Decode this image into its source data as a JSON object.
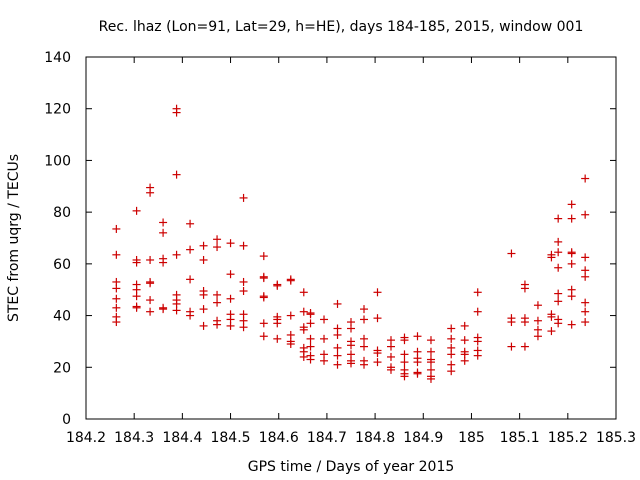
{
  "chart_data": {
    "type": "scatter",
    "title": "Rec. lhaz (Lon=91, Lat=29, h=HE), days 184-185, 2015, window 001",
    "xlabel": "GPS time / Days of year 2015",
    "ylabel": "STEC from uqrg / TECUs",
    "xlim": [
      184.2,
      185.3
    ],
    "ylim": [
      0,
      140
    ],
    "xticks": [
      "184.2",
      "184.3",
      "184.4",
      "184.5",
      "184.6",
      "184.7",
      "184.8",
      "184.9",
      "185",
      "185.1",
      "185.2",
      "185.3"
    ],
    "yticks": [
      "0",
      "20",
      "40",
      "60",
      "80",
      "100",
      "120",
      "140"
    ],
    "grid": false,
    "marker": "+",
    "color": "#cc0000",
    "points": [
      [
        184.263,
        73.5
      ],
      [
        184.263,
        63.5
      ],
      [
        184.263,
        53.0
      ],
      [
        184.263,
        50.5
      ],
      [
        184.263,
        46.5
      ],
      [
        184.263,
        43.0
      ],
      [
        184.263,
        39.5
      ],
      [
        184.263,
        37.5
      ],
      [
        184.305,
        80.5
      ],
      [
        184.305,
        61.5
      ],
      [
        184.305,
        60.5
      ],
      [
        184.305,
        52.0
      ],
      [
        184.305,
        50.0
      ],
      [
        184.305,
        47.5
      ],
      [
        184.305,
        43.5
      ],
      [
        184.305,
        43.0
      ],
      [
        184.333,
        89.5
      ],
      [
        184.333,
        87.5
      ],
      [
        184.333,
        61.5
      ],
      [
        184.333,
        53.0
      ],
      [
        184.333,
        52.5
      ],
      [
        184.333,
        46.0
      ],
      [
        184.333,
        41.5
      ],
      [
        184.36,
        76.0
      ],
      [
        184.36,
        72.0
      ],
      [
        184.36,
        62.0
      ],
      [
        184.36,
        60.5
      ],
      [
        184.36,
        43.0
      ],
      [
        184.36,
        42.5
      ],
      [
        184.388,
        120.0
      ],
      [
        184.388,
        118.5
      ],
      [
        184.388,
        94.5
      ],
      [
        184.388,
        63.5
      ],
      [
        184.388,
        48.0
      ],
      [
        184.388,
        46.0
      ],
      [
        184.388,
        44.5
      ],
      [
        184.388,
        42.0
      ],
      [
        184.416,
        75.5
      ],
      [
        184.416,
        65.5
      ],
      [
        184.416,
        54.0
      ],
      [
        184.416,
        41.5
      ],
      [
        184.416,
        40.0
      ],
      [
        184.444,
        67.0
      ],
      [
        184.444,
        61.5
      ],
      [
        184.444,
        49.5
      ],
      [
        184.444,
        48.0
      ],
      [
        184.444,
        42.5
      ],
      [
        184.444,
        36.0
      ],
      [
        184.472,
        69.5
      ],
      [
        184.472,
        66.5
      ],
      [
        184.472,
        48.0
      ],
      [
        184.472,
        45.0
      ],
      [
        184.472,
        38.0
      ],
      [
        184.472,
        36.5
      ],
      [
        184.5,
        68.0
      ],
      [
        184.5,
        56.0
      ],
      [
        184.5,
        46.5
      ],
      [
        184.5,
        40.5
      ],
      [
        184.5,
        38.5
      ],
      [
        184.5,
        36.0
      ],
      [
        184.527,
        85.5
      ],
      [
        184.527,
        67.0
      ],
      [
        184.527,
        53.0
      ],
      [
        184.527,
        49.5
      ],
      [
        184.527,
        40.5
      ],
      [
        184.527,
        38.0
      ],
      [
        184.527,
        35.5
      ],
      [
        184.569,
        63.0
      ],
      [
        184.569,
        55.0
      ],
      [
        184.569,
        54.5
      ],
      [
        184.569,
        47.5
      ],
      [
        184.569,
        47.0
      ],
      [
        184.569,
        37.0
      ],
      [
        184.569,
        32.0
      ],
      [
        184.597,
        52.0
      ],
      [
        184.597,
        51.5
      ],
      [
        184.597,
        39.5
      ],
      [
        184.597,
        38.5
      ],
      [
        184.597,
        37.0
      ],
      [
        184.597,
        31.0
      ],
      [
        184.625,
        54.0
      ],
      [
        184.625,
        53.5
      ],
      [
        184.625,
        40.0
      ],
      [
        184.625,
        32.5
      ],
      [
        184.625,
        30.0
      ],
      [
        184.625,
        29.0
      ],
      [
        184.652,
        49.0
      ],
      [
        184.652,
        41.5
      ],
      [
        184.652,
        35.5
      ],
      [
        184.652,
        34.5
      ],
      [
        184.652,
        27.5
      ],
      [
        184.652,
        26.0
      ],
      [
        184.652,
        24.0
      ],
      [
        184.666,
        41.0
      ],
      [
        184.666,
        40.5
      ],
      [
        184.666,
        37.0
      ],
      [
        184.666,
        31.0
      ],
      [
        184.666,
        28.0
      ],
      [
        184.666,
        24.5
      ],
      [
        184.666,
        23.0
      ],
      [
        184.694,
        38.5
      ],
      [
        184.694,
        31.0
      ],
      [
        184.694,
        25.0
      ],
      [
        184.694,
        22.5
      ],
      [
        184.722,
        44.5
      ],
      [
        184.722,
        35.0
      ],
      [
        184.722,
        32.5
      ],
      [
        184.722,
        27.5
      ],
      [
        184.722,
        24.5
      ],
      [
        184.722,
        21.0
      ],
      [
        184.75,
        37.5
      ],
      [
        184.75,
        35.0
      ],
      [
        184.75,
        30.0
      ],
      [
        184.75,
        28.5
      ],
      [
        184.75,
        25.0
      ],
      [
        184.75,
        22.5
      ],
      [
        184.75,
        21.5
      ],
      [
        184.777,
        42.5
      ],
      [
        184.777,
        38.5
      ],
      [
        184.777,
        31.0
      ],
      [
        184.777,
        28.0
      ],
      [
        184.777,
        22.5
      ],
      [
        184.777,
        21.0
      ],
      [
        184.805,
        49.0
      ],
      [
        184.805,
        39.0
      ],
      [
        184.805,
        26.5
      ],
      [
        184.805,
        25.5
      ],
      [
        184.805,
        22.0
      ],
      [
        184.833,
        30.5
      ],
      [
        184.833,
        28.0
      ],
      [
        184.833,
        24.0
      ],
      [
        184.833,
        20.0
      ],
      [
        184.833,
        19.0
      ],
      [
        184.861,
        31.5
      ],
      [
        184.861,
        30.5
      ],
      [
        184.861,
        25.0
      ],
      [
        184.861,
        22.0
      ],
      [
        184.861,
        19.0
      ],
      [
        184.861,
        17.5
      ],
      [
        184.861,
        16.5
      ],
      [
        184.888,
        32.0
      ],
      [
        184.888,
        26.0
      ],
      [
        184.888,
        23.5
      ],
      [
        184.888,
        22.0
      ],
      [
        184.888,
        18.0
      ],
      [
        184.888,
        17.5
      ],
      [
        184.916,
        30.5
      ],
      [
        184.916,
        26.0
      ],
      [
        184.916,
        23.0
      ],
      [
        184.916,
        22.0
      ],
      [
        184.916,
        19.0
      ],
      [
        184.916,
        16.5
      ],
      [
        184.916,
        15.5
      ],
      [
        184.958,
        35.0
      ],
      [
        184.958,
        31.0
      ],
      [
        184.958,
        27.5
      ],
      [
        184.958,
        25.0
      ],
      [
        184.958,
        21.0
      ],
      [
        184.958,
        18.5
      ],
      [
        184.986,
        36.0
      ],
      [
        184.986,
        30.5
      ],
      [
        184.986,
        26.0
      ],
      [
        184.986,
        25.0
      ],
      [
        184.986,
        22.5
      ],
      [
        185.013,
        49.0
      ],
      [
        185.013,
        41.5
      ],
      [
        185.013,
        31.5
      ],
      [
        185.013,
        30.0
      ],
      [
        185.013,
        26.5
      ],
      [
        185.013,
        24.5
      ],
      [
        185.083,
        64.0
      ],
      [
        185.083,
        39.0
      ],
      [
        185.083,
        37.5
      ],
      [
        185.083,
        28.0
      ],
      [
        185.111,
        52.0
      ],
      [
        185.111,
        50.5
      ],
      [
        185.111,
        39.0
      ],
      [
        185.111,
        37.5
      ],
      [
        185.111,
        28.0
      ],
      [
        185.138,
        44.0
      ],
      [
        185.138,
        38.0
      ],
      [
        185.138,
        34.5
      ],
      [
        185.138,
        32.0
      ],
      [
        185.166,
        63.5
      ],
      [
        185.166,
        62.5
      ],
      [
        185.166,
        40.5
      ],
      [
        185.166,
        39.5
      ],
      [
        185.166,
        34.0
      ],
      [
        185.18,
        77.5
      ],
      [
        185.18,
        68.5
      ],
      [
        185.18,
        64.5
      ],
      [
        185.18,
        58.5
      ],
      [
        185.18,
        48.5
      ],
      [
        185.18,
        45.5
      ],
      [
        185.18,
        38.5
      ],
      [
        185.18,
        37.0
      ],
      [
        185.208,
        83.0
      ],
      [
        185.208,
        77.5
      ],
      [
        185.208,
        64.5
      ],
      [
        185.208,
        64.0
      ],
      [
        185.208,
        60.0
      ],
      [
        185.208,
        50.0
      ],
      [
        185.208,
        47.5
      ],
      [
        185.208,
        36.5
      ],
      [
        185.236,
        93.0
      ],
      [
        185.236,
        79.0
      ],
      [
        185.236,
        62.5
      ],
      [
        185.236,
        57.5
      ],
      [
        185.236,
        55.0
      ],
      [
        185.236,
        45.0
      ],
      [
        185.236,
        41.5
      ],
      [
        185.236,
        37.5
      ]
    ]
  }
}
